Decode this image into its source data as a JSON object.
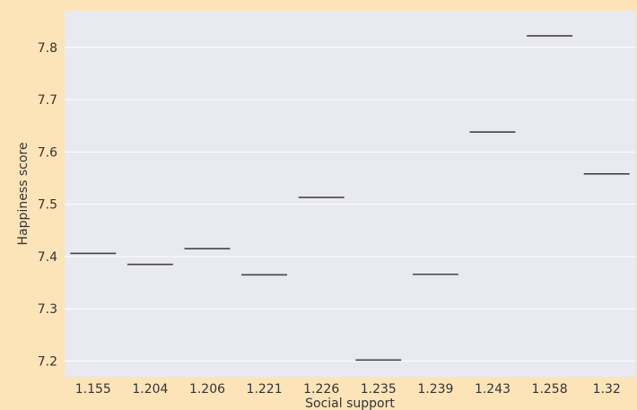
{
  "colors": {
    "background": "#fde4b8",
    "plot_background": "#e9e9f1",
    "grid": "#ffffff",
    "mark": "#444444"
  },
  "chart_data": {
    "type": "box",
    "title": "",
    "xlabel": "Social support",
    "ylabel": "Happiness score",
    "categories": [
      "1.155",
      "1.204",
      "1.206",
      "1.221",
      "1.226",
      "1.235",
      "1.239",
      "1.243",
      "1.258",
      "1.32"
    ],
    "values": [
      7.406,
      7.385,
      7.415,
      7.365,
      7.513,
      7.202,
      7.366,
      7.638,
      7.822,
      7.558
    ],
    "ylim": [
      7.17,
      7.87
    ],
    "yticks": [
      "7.2",
      "7.3",
      "7.4",
      "7.5",
      "7.6",
      "7.7",
      "7.8"
    ],
    "grid": true,
    "legend": "none"
  }
}
